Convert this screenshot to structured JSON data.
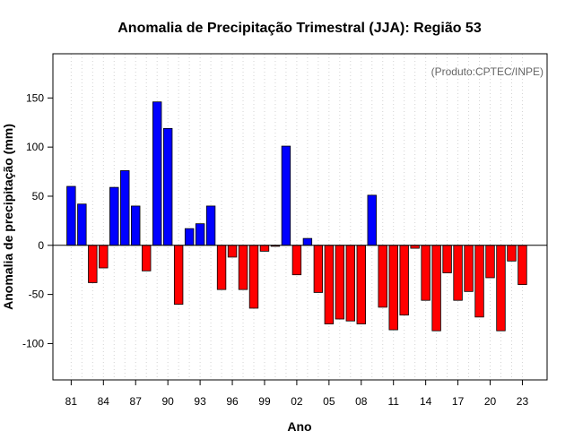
{
  "chart_data": {
    "type": "bar",
    "title": "Anomalia de Precipitação Trimestral (JJA): Região 53",
    "xlabel": "Ano",
    "ylabel": "Anomalia de precipitação (mm)",
    "credit": "(Produto:CPTEC/INPE)",
    "ylim": [
      -137,
      195
    ],
    "yticks": [
      -100,
      -50,
      0,
      50,
      100,
      150
    ],
    "xlim": [
      1979.3,
      2025.3
    ],
    "xticks": [
      {
        "year": 1981,
        "label": "81"
      },
      {
        "year": 1984,
        "label": "84"
      },
      {
        "year": 1987,
        "label": "87"
      },
      {
        "year": 1990,
        "label": "90"
      },
      {
        "year": 1993,
        "label": "93"
      },
      {
        "year": 1996,
        "label": "96"
      },
      {
        "year": 1999,
        "label": "99"
      },
      {
        "year": 2002,
        "label": "02"
      },
      {
        "year": 2005,
        "label": "05"
      },
      {
        "year": 2008,
        "label": "08"
      },
      {
        "year": 2011,
        "label": "11"
      },
      {
        "year": 2014,
        "label": "14"
      },
      {
        "year": 2017,
        "label": "17"
      },
      {
        "year": 2020,
        "label": "20"
      },
      {
        "year": 2023,
        "label": "23"
      }
    ],
    "categories": [
      1981,
      1982,
      1983,
      1984,
      1985,
      1986,
      1987,
      1988,
      1989,
      1990,
      1991,
      1992,
      1993,
      1994,
      1995,
      1996,
      1997,
      1998,
      1999,
      2000,
      2001,
      2002,
      2003,
      2004,
      2005,
      2006,
      2007,
      2008,
      2009,
      2010,
      2011,
      2012,
      2013,
      2014,
      2015,
      2016,
      2017,
      2018,
      2019,
      2020,
      2021,
      2022,
      2023
    ],
    "values": [
      60,
      42,
      -38,
      -23,
      59,
      76,
      40,
      -26,
      146,
      119,
      -60,
      17,
      22,
      40,
      -45,
      -12,
      -45,
      -64,
      -6,
      -1,
      101,
      -30,
      7,
      -48,
      -80,
      -75,
      -77,
      -80,
      51,
      -63,
      -86,
      -71,
      -3,
      -56,
      -87,
      -28,
      -56,
      -47,
      -73,
      -33,
      -87,
      -16,
      -40
    ],
    "colors": {
      "positive": "#0000ff",
      "negative": "#ff0000",
      "bar_edge": "#000000",
      "grid": "#d3d3d3"
    }
  }
}
